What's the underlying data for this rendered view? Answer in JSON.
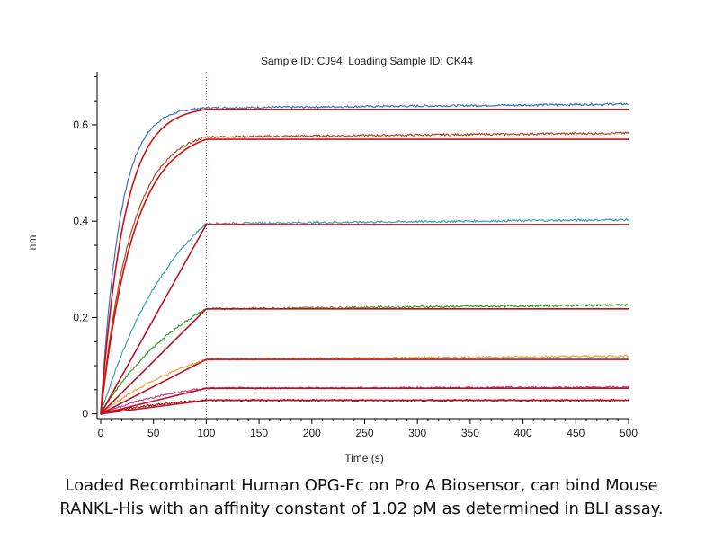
{
  "chart_data": {
    "type": "line",
    "title": "Sample ID: CJ94, Loading Sample ID: CK44",
    "xlabel": "Time (s)",
    "ylabel": "nm",
    "xlim": [
      0,
      500
    ],
    "ylim": [
      -0.01,
      0.71
    ],
    "xticks": [
      0,
      50,
      100,
      150,
      200,
      250,
      300,
      350,
      400,
      450,
      500
    ],
    "yticks": [
      0,
      0.2,
      0.4,
      0.6
    ],
    "association_end": 100,
    "grid": false,
    "series": [
      {
        "color": "#3b6fc4",
        "plateau": 0.635,
        "k": 0.055,
        "drift": 0.008
      },
      {
        "color": "#b5451b",
        "plateau": 0.575,
        "k": 0.035,
        "drift": 0.008
      },
      {
        "color": "#3aa0b0",
        "plateau": 0.395,
        "k": 0.013,
        "drift": 0.008
      },
      {
        "color": "#3a9a2a",
        "plateau": 0.218,
        "k": 0.011,
        "drift": 0.008
      },
      {
        "color": "#f0a040",
        "plateau": 0.113,
        "k": 0.009,
        "drift": 0.007
      },
      {
        "color": "#d03a8a",
        "plateau": 0.053,
        "k": 0.012,
        "drift": 0.002
      },
      {
        "color": "#8b1a1a",
        "plateau": 0.028,
        "k": 0.013,
        "drift": 0.0
      }
    ],
    "fits": [
      {
        "color": "#d01010",
        "plateau": 0.632,
        "k": 0.045,
        "start": 0.0
      },
      {
        "color": "#d01010",
        "plateau": 0.57,
        "k": 0.032,
        "start": 0.0
      },
      {
        "color": "#c01020",
        "plateau": 0.393,
        "k": 0.0,
        "start": 0.0
      },
      {
        "color": "#c01020",
        "plateau": 0.218,
        "k": 0.0,
        "start": 0.0
      },
      {
        "color": "#c01020",
        "plateau": 0.113,
        "k": 0.0,
        "start": 0.0
      },
      {
        "color": "#c01020",
        "plateau": 0.053,
        "k": 0.0,
        "start": 0.0
      },
      {
        "color": "#c01020",
        "plateau": 0.028,
        "k": 0.0,
        "start": 0.0
      }
    ]
  },
  "caption": {
    "line1": "Loaded Recombinant Human OPG-Fc on Pro A Biosensor, can bind Mouse",
    "line2": "RANKL-His with an affinity constant of 1.02 pM as determined in BLI assay."
  }
}
